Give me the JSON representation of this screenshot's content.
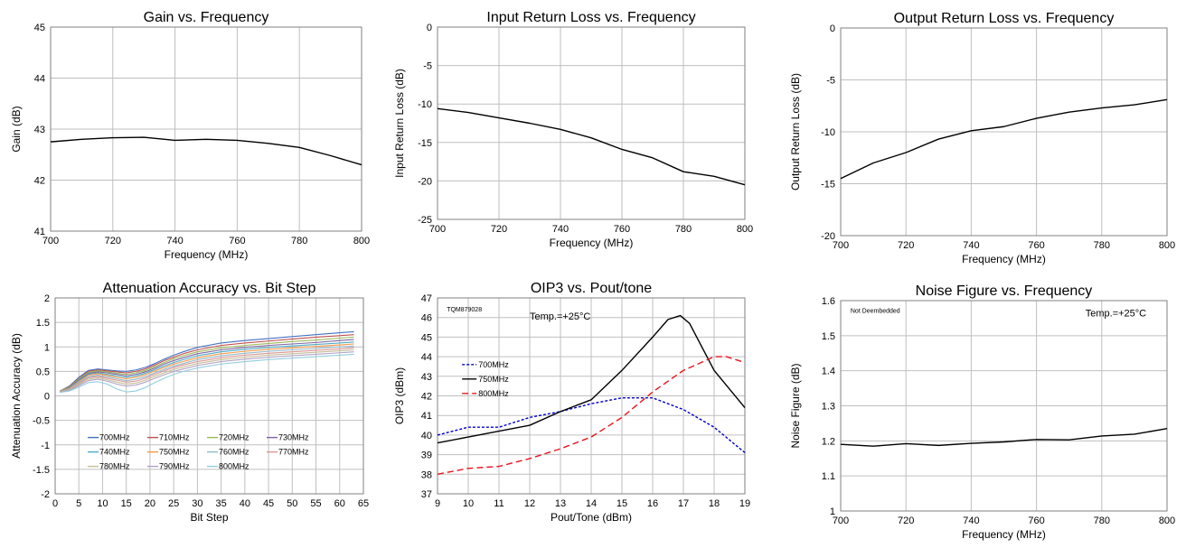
{
  "chart_data": [
    {
      "id": "gain",
      "type": "line",
      "title": "Gain vs. Frequency",
      "xlabel": "Frequency (MHz)",
      "ylabel": "Gain (dB)",
      "xlim": [
        700,
        800
      ],
      "ylim": [
        41,
        45
      ],
      "xticks": [
        700,
        720,
        740,
        760,
        780,
        800
      ],
      "yticks": [
        41,
        42,
        43,
        44,
        45
      ],
      "grid": true,
      "notes": [],
      "legend": [],
      "series": [
        {
          "name": "",
          "color": "#000000",
          "dash": "",
          "x": [
            700,
            710,
            720,
            730,
            740,
            750,
            760,
            770,
            780,
            790,
            800
          ],
          "y": [
            42.75,
            42.8,
            42.83,
            42.84,
            42.78,
            42.8,
            42.78,
            42.72,
            42.64,
            42.48,
            42.3
          ]
        }
      ]
    },
    {
      "id": "irl",
      "type": "line",
      "title": "Input Return Loss vs. Frequency",
      "xlabel": "Frequency (MHz)",
      "ylabel": "Input Return Loss (dB)",
      "xlim": [
        700,
        800
      ],
      "ylim": [
        -25,
        0
      ],
      "xticks": [
        700,
        720,
        740,
        760,
        780,
        800
      ],
      "yticks": [
        -25,
        -20,
        -15,
        -10,
        -5,
        0
      ],
      "grid": true,
      "notes": [],
      "legend": [],
      "series": [
        {
          "name": "",
          "color": "#000000",
          "dash": "",
          "x": [
            700,
            710,
            720,
            730,
            740,
            750,
            760,
            770,
            780,
            790,
            800
          ],
          "y": [
            -10.6,
            -11.1,
            -11.8,
            -12.5,
            -13.3,
            -14.4,
            -15.9,
            -17.0,
            -18.8,
            -19.4,
            -20.5
          ]
        }
      ]
    },
    {
      "id": "orl",
      "type": "line",
      "title": "Output Return Loss vs. Frequency",
      "xlabel": "Frequency (MHz)",
      "ylabel": "Output Return Loss (dB)",
      "xlim": [
        700,
        800
      ],
      "ylim": [
        -20,
        0
      ],
      "xticks": [
        700,
        720,
        740,
        760,
        780,
        800
      ],
      "yticks": [
        -20,
        -15,
        -10,
        -5,
        0
      ],
      "grid": true,
      "notes": [],
      "legend": [],
      "series": [
        {
          "name": "",
          "color": "#000000",
          "dash": "",
          "x": [
            700,
            710,
            720,
            730,
            740,
            750,
            760,
            770,
            780,
            790,
            800
          ],
          "y": [
            -14.5,
            -13.0,
            -12.0,
            -10.7,
            -9.9,
            -9.5,
            -8.7,
            -8.1,
            -7.7,
            -7.4,
            -6.9
          ]
        }
      ]
    },
    {
      "id": "atten",
      "type": "line",
      "title": "Attenuation Accuracy vs. Bit Step",
      "xlabel": "Bit Step",
      "ylabel": "Attenuation Accuracy (dB)",
      "xlim": [
        0,
        65
      ],
      "ylim": [
        -2,
        2
      ],
      "xticks": [
        0,
        5,
        10,
        15,
        20,
        25,
        30,
        35,
        40,
        45,
        50,
        55,
        60,
        65
      ],
      "yticks": [
        -2,
        -1.5,
        -1,
        -0.5,
        0,
        0.5,
        1,
        1.5,
        2
      ],
      "grid": true,
      "notes": [],
      "legend": [],
      "legend_cols": 4,
      "series": [
        {
          "name": "700MHz",
          "color": "#4472c4",
          "dash": "",
          "x": [
            1,
            3,
            5,
            7,
            9,
            11,
            13,
            15,
            17,
            19,
            21,
            23,
            25,
            27,
            30,
            35,
            40,
            45,
            50,
            55,
            60,
            63
          ],
          "y": [
            0.1,
            0.2,
            0.38,
            0.52,
            0.55,
            0.53,
            0.51,
            0.5,
            0.53,
            0.58,
            0.66,
            0.75,
            0.83,
            0.9,
            0.99,
            1.08,
            1.13,
            1.17,
            1.21,
            1.25,
            1.29,
            1.31
          ]
        },
        {
          "name": "710MHz",
          "color": "#c0504d",
          "dash": "",
          "x": [
            1,
            3,
            5,
            7,
            9,
            11,
            13,
            15,
            17,
            19,
            21,
            23,
            25,
            27,
            30,
            35,
            40,
            45,
            50,
            55,
            60,
            63
          ],
          "y": [
            0.1,
            0.19,
            0.36,
            0.5,
            0.53,
            0.51,
            0.49,
            0.47,
            0.5,
            0.55,
            0.63,
            0.72,
            0.79,
            0.86,
            0.94,
            1.03,
            1.08,
            1.12,
            1.16,
            1.2,
            1.23,
            1.25
          ]
        },
        {
          "name": "720MHz",
          "color": "#9bbb59",
          "dash": "",
          "x": [
            1,
            3,
            5,
            7,
            9,
            11,
            13,
            15,
            17,
            19,
            21,
            23,
            25,
            27,
            30,
            35,
            40,
            45,
            50,
            55,
            60,
            63
          ],
          "y": [
            0.1,
            0.18,
            0.35,
            0.48,
            0.51,
            0.49,
            0.46,
            0.44,
            0.47,
            0.52,
            0.6,
            0.68,
            0.76,
            0.82,
            0.9,
            0.98,
            1.03,
            1.07,
            1.11,
            1.14,
            1.18,
            1.2
          ]
        },
        {
          "name": "730MHz",
          "color": "#8064a2",
          "dash": "",
          "x": [
            1,
            3,
            5,
            7,
            9,
            11,
            13,
            15,
            17,
            19,
            21,
            23,
            25,
            27,
            30,
            35,
            40,
            45,
            50,
            55,
            60,
            63
          ],
          "y": [
            0.09,
            0.17,
            0.33,
            0.46,
            0.49,
            0.47,
            0.44,
            0.41,
            0.44,
            0.49,
            0.57,
            0.65,
            0.72,
            0.78,
            0.86,
            0.94,
            0.99,
            1.03,
            1.06,
            1.09,
            1.13,
            1.15
          ]
        },
        {
          "name": "740MHz",
          "color": "#4bacc6",
          "dash": "",
          "x": [
            1,
            3,
            5,
            7,
            9,
            11,
            13,
            15,
            17,
            19,
            21,
            23,
            25,
            27,
            30,
            35,
            40,
            45,
            50,
            55,
            60,
            63
          ],
          "y": [
            0.09,
            0.16,
            0.31,
            0.44,
            0.47,
            0.44,
            0.41,
            0.38,
            0.41,
            0.46,
            0.54,
            0.61,
            0.68,
            0.74,
            0.82,
            0.9,
            0.95,
            0.99,
            1.02,
            1.05,
            1.08,
            1.1
          ]
        },
        {
          "name": "750MHz",
          "color": "#f79646",
          "dash": "",
          "x": [
            1,
            3,
            5,
            7,
            9,
            11,
            13,
            15,
            17,
            19,
            21,
            23,
            25,
            27,
            30,
            35,
            40,
            45,
            50,
            55,
            60,
            63
          ],
          "y": [
            0.09,
            0.15,
            0.29,
            0.42,
            0.45,
            0.42,
            0.38,
            0.35,
            0.38,
            0.43,
            0.51,
            0.58,
            0.65,
            0.7,
            0.78,
            0.86,
            0.91,
            0.95,
            0.98,
            1.01,
            1.04,
            1.06
          ]
        },
        {
          "name": "760MHz",
          "color": "#93b9cb",
          "dash": "",
          "x": [
            1,
            3,
            5,
            7,
            9,
            11,
            13,
            15,
            17,
            19,
            21,
            23,
            25,
            27,
            30,
            35,
            40,
            45,
            50,
            55,
            60,
            63
          ],
          "y": [
            0.08,
            0.14,
            0.27,
            0.39,
            0.42,
            0.39,
            0.35,
            0.31,
            0.34,
            0.39,
            0.47,
            0.54,
            0.61,
            0.66,
            0.74,
            0.82,
            0.87,
            0.91,
            0.94,
            0.97,
            1.0,
            1.02
          ]
        },
        {
          "name": "770MHz",
          "color": "#d99694",
          "dash": "",
          "x": [
            1,
            3,
            5,
            7,
            9,
            11,
            13,
            15,
            17,
            19,
            21,
            23,
            25,
            27,
            30,
            35,
            40,
            45,
            50,
            55,
            60,
            63
          ],
          "y": [
            0.08,
            0.13,
            0.25,
            0.37,
            0.4,
            0.36,
            0.32,
            0.28,
            0.3,
            0.36,
            0.44,
            0.51,
            0.58,
            0.63,
            0.7,
            0.78,
            0.83,
            0.87,
            0.9,
            0.93,
            0.96,
            0.98
          ]
        },
        {
          "name": "780MHz",
          "color": "#c4bd97",
          "dash": "",
          "x": [
            1,
            3,
            5,
            7,
            9,
            11,
            13,
            15,
            17,
            19,
            21,
            23,
            25,
            27,
            30,
            35,
            40,
            45,
            50,
            55,
            60,
            63
          ],
          "y": [
            0.08,
            0.12,
            0.23,
            0.34,
            0.37,
            0.33,
            0.28,
            0.24,
            0.26,
            0.32,
            0.4,
            0.47,
            0.54,
            0.59,
            0.66,
            0.74,
            0.79,
            0.83,
            0.86,
            0.89,
            0.92,
            0.94
          ]
        },
        {
          "name": "790MHz",
          "color": "#b3a2c7",
          "dash": "",
          "x": [
            1,
            3,
            5,
            7,
            9,
            11,
            13,
            15,
            17,
            19,
            21,
            23,
            25,
            27,
            30,
            35,
            40,
            45,
            50,
            55,
            60,
            63
          ],
          "y": [
            0.08,
            0.11,
            0.21,
            0.31,
            0.34,
            0.3,
            0.24,
            0.2,
            0.22,
            0.28,
            0.36,
            0.43,
            0.5,
            0.55,
            0.62,
            0.7,
            0.75,
            0.79,
            0.82,
            0.85,
            0.88,
            0.9
          ]
        },
        {
          "name": "800MHz",
          "color": "#92cddc",
          "dash": "",
          "x": [
            1,
            3,
            5,
            7,
            9,
            11,
            13,
            15,
            17,
            19,
            21,
            23,
            25,
            27,
            30,
            35,
            40,
            45,
            50,
            55,
            60,
            63
          ],
          "y": [
            0.07,
            0.1,
            0.18,
            0.27,
            0.29,
            0.24,
            0.14,
            0.08,
            0.1,
            0.17,
            0.27,
            0.36,
            0.44,
            0.5,
            0.57,
            0.65,
            0.7,
            0.74,
            0.77,
            0.8,
            0.83,
            0.85
          ]
        }
      ]
    },
    {
      "id": "oip3",
      "type": "line",
      "title": "OIP3 vs. Pout/tone",
      "xlabel": "Pout/Tone (dBm)",
      "ylabel": "OIP3 (dBm)",
      "xlim": [
        9,
        19
      ],
      "ylim": [
        37,
        47
      ],
      "xticks": [
        9,
        10,
        11,
        12,
        13,
        14,
        15,
        16,
        17,
        18,
        19
      ],
      "yticks": [
        37,
        38,
        39,
        40,
        41,
        42,
        43,
        44,
        45,
        46,
        47
      ],
      "grid": true,
      "notes": [
        {
          "text": "TQM879028",
          "at": [
            9.3,
            46.3
          ],
          "size": "small"
        },
        {
          "text": "Temp.=+25°C",
          "at": [
            12.0,
            45.9
          ],
          "size": "note"
        }
      ],
      "legend": [
        "700MHz",
        "750MHz",
        "800MHz"
      ],
      "legend_cols": 1,
      "series": [
        {
          "name": "700MHz",
          "color": "#0000cc",
          "dash": "3,2",
          "x": [
            9,
            10,
            11,
            12,
            13,
            14,
            15,
            16,
            17,
            18,
            19
          ],
          "y": [
            40.0,
            40.4,
            40.4,
            40.9,
            41.2,
            41.6,
            41.9,
            41.9,
            41.3,
            40.4,
            39.1
          ]
        },
        {
          "name": "750MHz",
          "color": "#000000",
          "dash": "",
          "x": [
            9,
            10,
            11,
            12,
            13,
            14,
            15,
            16,
            16.5,
            16.9,
            17.2,
            18,
            19
          ],
          "y": [
            39.6,
            39.9,
            40.2,
            40.5,
            41.2,
            41.8,
            43.3,
            45.0,
            45.9,
            46.1,
            45.7,
            43.3,
            41.4
          ]
        },
        {
          "name": "800MHz",
          "color": "#e8141e",
          "dash": "7,4",
          "x": [
            9,
            10,
            11,
            12,
            13,
            14,
            15,
            16,
            17,
            18,
            18.4,
            19
          ],
          "y": [
            38.0,
            38.3,
            38.4,
            38.8,
            39.3,
            39.9,
            40.9,
            42.2,
            43.3,
            44.0,
            44.0,
            43.7
          ]
        }
      ]
    },
    {
      "id": "nf",
      "type": "line",
      "title": "Noise Figure vs. Frequency",
      "xlabel": "Frequency (MHz)",
      "ylabel": "Noise Figure (dB)",
      "xlim": [
        700,
        800
      ],
      "ylim": [
        1.0,
        1.6
      ],
      "xticks": [
        700,
        720,
        740,
        760,
        780,
        800
      ],
      "yticks": [
        1,
        1.1,
        1.2,
        1.3,
        1.4,
        1.5,
        1.6
      ],
      "grid": true,
      "notes": [
        {
          "text": "Not Deembedded",
          "at": [
            703,
            1.565
          ],
          "size": "small"
        },
        {
          "text": "Temp.=+25°C",
          "at": [
            775,
            1.555
          ],
          "size": "note"
        }
      ],
      "legend": [],
      "series": [
        {
          "name": "",
          "color": "#000000",
          "dash": "",
          "x": [
            700,
            710,
            720,
            730,
            740,
            750,
            760,
            770,
            780,
            790,
            800
          ],
          "y": [
            1.19,
            1.185,
            1.192,
            1.187,
            1.193,
            1.197,
            1.204,
            1.203,
            1.214,
            1.219,
            1.235
          ]
        }
      ]
    }
  ]
}
